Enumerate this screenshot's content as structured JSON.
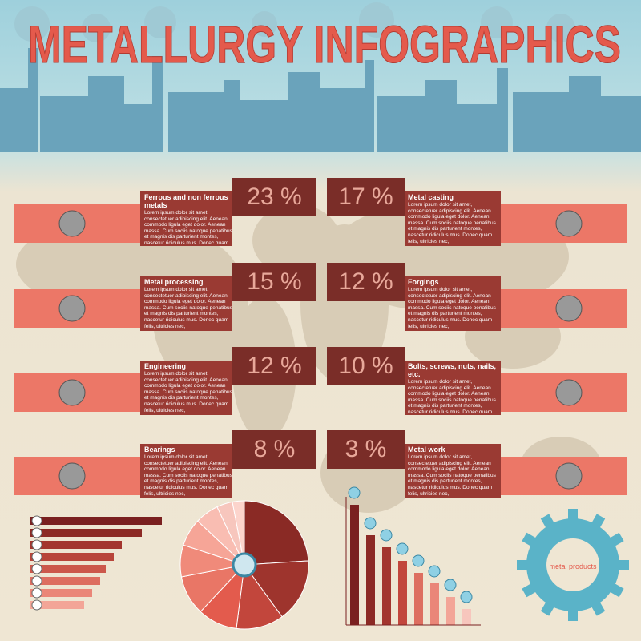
{
  "header": {
    "title": "METALLURGY  INFOGRAPHICS"
  },
  "left": [
    {
      "percent": "23 %",
      "title": "Ferrous and non ferrous metals",
      "text": "Lorem ipsum dolor sit amet, consectetuer adipiscing elit. Aenean commodo ligula eget dolor. Aenean massa. Cum sociis natoque penatibus et magnis dis parturient montes, nascetur ridiculus mus. Donec quam felis, ultricies nec,"
    },
    {
      "percent": "15 %",
      "title": "Metal processing",
      "text": "Lorem ipsum dolor sit amet, consectetuer adipiscing elit. Aenean commodo ligula eget dolor. Aenean massa. Cum sociis natoque penatibus et magnis dis parturient montes, nascetur ridiculus mus. Donec quam felis, ultricies nec,"
    },
    {
      "percent": "12 %",
      "title": "Engineering",
      "text": "Lorem ipsum dolor sit amet, consectetuer adipiscing elit. Aenean commodo ligula eget dolor. Aenean massa. Cum sociis natoque penatibus et magnis dis parturient montes, nascetur ridiculus mus. Donec quam felis, ultricies nec,"
    },
    {
      "percent": "8 %",
      "title": "Bearings",
      "text": "Lorem ipsum dolor sit amet, consectetuer adipiscing elit. Aenean commodo ligula eget dolor. Aenean massa. Cum sociis natoque penatibus et magnis dis parturient montes, nascetur ridiculus mus. Donec quam felis, ultricies nec,"
    }
  ],
  "right": [
    {
      "percent": "17 %",
      "title": "Metal casting",
      "text": "Lorem ipsum dolor sit amet, consectetuer adipiscing elit. Aenean commodo ligula eget dolor. Aenean massa. Cum sociis natoque penatibus et magnis dis parturient montes, nascetur ridiculus mus. Donec quam felis, ultricies nec,"
    },
    {
      "percent": "12 %",
      "title": "Forgings",
      "text": "Lorem ipsum dolor sit amet, consectetuer adipiscing elit. Aenean commodo ligula eget dolor. Aenean massa. Cum sociis natoque penatibus et magnis dis parturient montes, nascetur ridiculus mus. Donec quam felis, ultricies nec,"
    },
    {
      "percent": "10 %",
      "title": "Bolts, screws, nuts, nails, etc.",
      "text": "Lorem ipsum dolor sit amet, consectetuer adipiscing elit. Aenean commodo ligula eget dolor. Aenean massa. Cum sociis natoque penatibus et magnis dis parturient montes, nascetur ridiculus mus. Donec quam felis, ultricies nec,"
    },
    {
      "percent": "3 %",
      "title": "Metal work",
      "text": "Lorem ipsum dolor sit amet, consectetuer adipiscing elit. Aenean commodo ligula eget dolor. Aenean massa. Cum sociis natoque penatibus et magnis dis parturient montes, nascetur ridiculus mus. Donec quam felis, ultricies nec,"
    }
  ],
  "gear": {
    "label": "metal products"
  }
}
